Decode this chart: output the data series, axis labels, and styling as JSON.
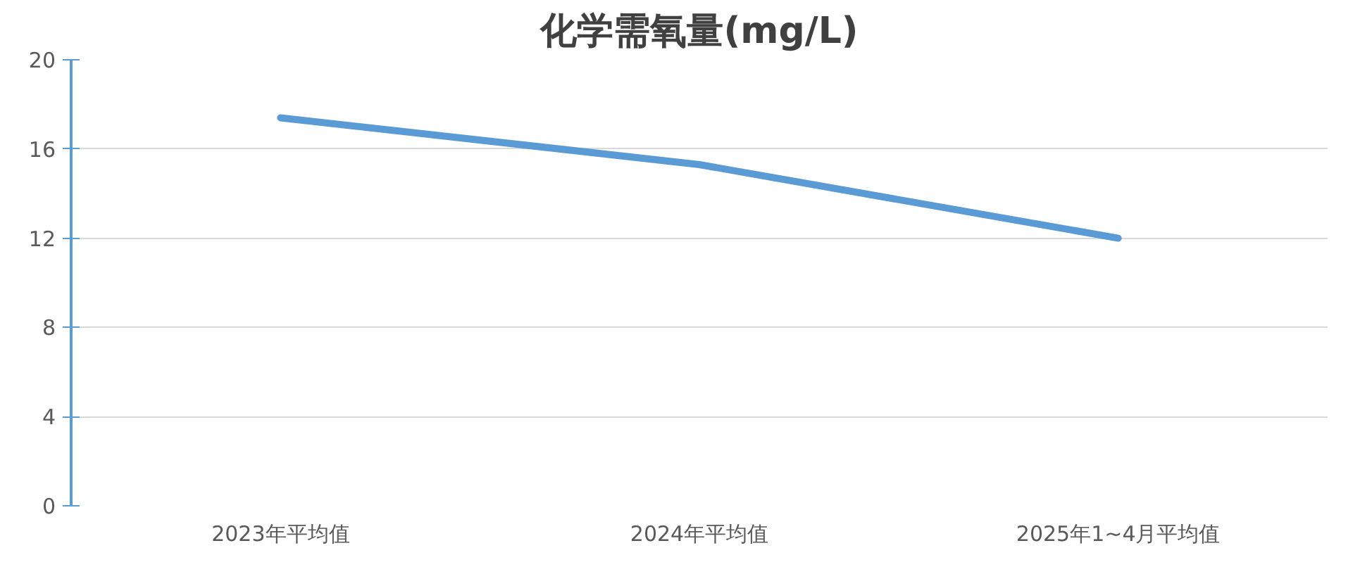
{
  "chart_data": {
    "type": "line",
    "title": "化学需氧量(mg/L)",
    "categories": [
      "2023年平均值",
      "2024年平均值",
      "2025年1~4月平均值"
    ],
    "series": [
      {
        "color": "#5b9bd5",
        "values": [
          17.4,
          15.3,
          12.0
        ]
      }
    ],
    "ylim": [
      0,
      20
    ],
    "yticks": [
      0,
      4,
      8,
      12,
      16,
      20
    ],
    "grid": "y"
  }
}
